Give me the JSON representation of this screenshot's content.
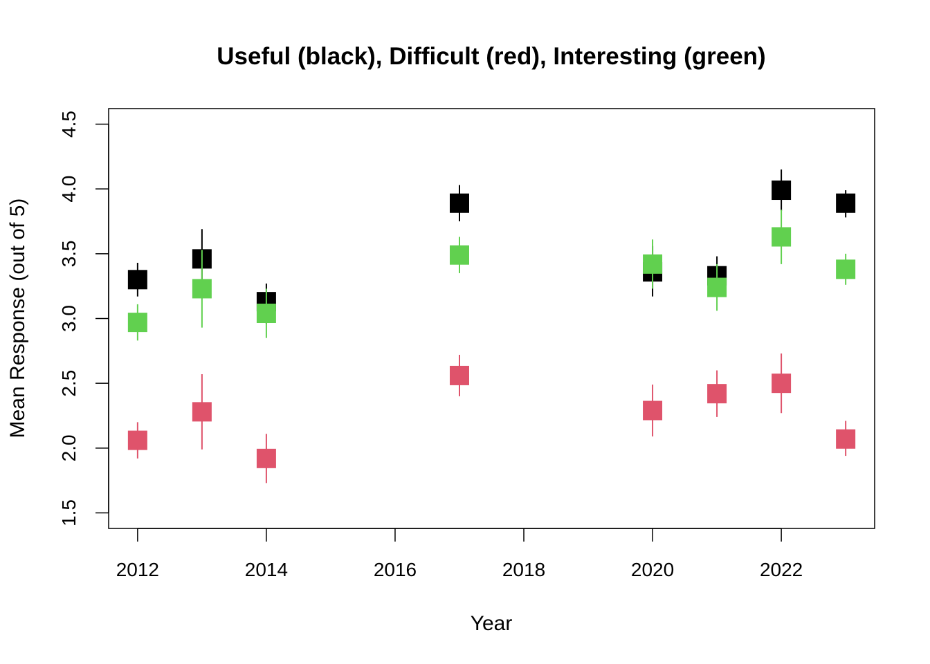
{
  "chart_data": {
    "type": "scatter",
    "title": "Useful (black), Difficult (red), Interesting (green)",
    "xlabel": "Year",
    "ylabel": "Mean Response (out of 5)",
    "xlim": [
      2011.55,
      2023.45
    ],
    "ylim": [
      1.38,
      4.62
    ],
    "x_ticks": [
      2012,
      2014,
      2016,
      2018,
      2020,
      2022
    ],
    "y_ticks": [
      1.5,
      2.0,
      2.5,
      3.0,
      3.5,
      4.0,
      4.5
    ],
    "x_tick_labels": [
      "2012",
      "2014",
      "2016",
      "2018",
      "2020",
      "2022"
    ],
    "y_tick_labels": [
      "1.5",
      "2.0",
      "2.5",
      "3.0",
      "3.5",
      "4.0",
      "4.5"
    ],
    "grid": false,
    "series": [
      {
        "color": "#000000",
        "x": [
          2012,
          2013,
          2014,
          2017,
          2020,
          2021,
          2022,
          2023
        ],
        "y": [
          3.3,
          3.46,
          3.13,
          3.89,
          3.36,
          3.33,
          3.99,
          3.89
        ],
        "lower": [
          3.17,
          3.23,
          2.96,
          3.75,
          3.17,
          3.18,
          3.83,
          3.78
        ],
        "upper": [
          3.43,
          3.69,
          3.27,
          4.03,
          3.56,
          3.48,
          4.15,
          3.99
        ]
      },
      {
        "color": "#DF536B",
        "x": [
          2012,
          2013,
          2014,
          2017,
          2020,
          2021,
          2022,
          2023
        ],
        "y": [
          2.06,
          2.28,
          1.92,
          2.56,
          2.29,
          2.42,
          2.5,
          2.07
        ],
        "lower": [
          1.92,
          1.99,
          1.73,
          2.4,
          2.09,
          2.24,
          2.27,
          1.94
        ],
        "upper": [
          2.2,
          2.57,
          2.11,
          2.72,
          2.49,
          2.6,
          2.73,
          2.21
        ]
      },
      {
        "color": "#61D04F",
        "x": [
          2012,
          2013,
          2014,
          2017,
          2020,
          2021,
          2022,
          2023
        ],
        "y": [
          2.97,
          3.23,
          3.04,
          3.49,
          3.42,
          3.24,
          3.63,
          3.38
        ],
        "lower": [
          2.83,
          2.93,
          2.85,
          3.35,
          3.23,
          3.06,
          3.42,
          3.26
        ],
        "upper": [
          3.11,
          3.53,
          3.23,
          3.63,
          3.61,
          3.42,
          3.84,
          3.5
        ]
      }
    ]
  }
}
